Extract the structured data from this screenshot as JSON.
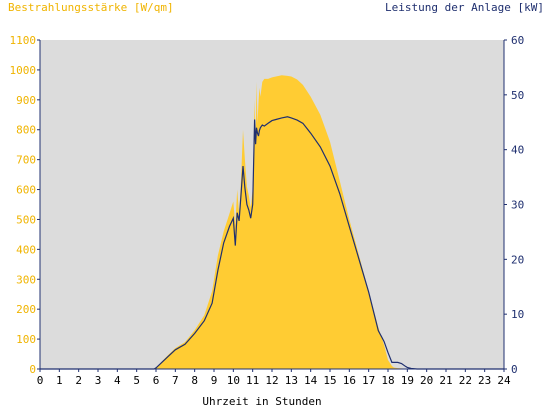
{
  "chart_data": {
    "type": "area",
    "y_left_label": "Bestrahlungsstärke [W/qm]",
    "y_right_label": "Leistung der Anlage [kW]",
    "xlabel": "Uhrzeit in Stunden",
    "xlim": [
      0,
      24
    ],
    "ylim_left": [
      0,
      1100
    ],
    "ylim_right": [
      0,
      60
    ],
    "x_ticks": [
      "0",
      "1",
      "2",
      "3",
      "4",
      "5",
      "6",
      "7",
      "8",
      "9",
      "10",
      "11",
      "12",
      "13",
      "14",
      "15",
      "16",
      "17",
      "18",
      "19",
      "20",
      "21",
      "22",
      "23",
      "24"
    ],
    "y_left_ticks": [
      "0",
      "100",
      "200",
      "300",
      "400",
      "500",
      "600",
      "700",
      "800",
      "900",
      "1000",
      "1100"
    ],
    "y_right_ticks": [
      "0",
      "10",
      "20",
      "30",
      "40",
      "50",
      "60"
    ],
    "grid": false,
    "colors": {
      "irradiance": "#FFCC33",
      "power": "#1F2F6F",
      "plot_background": "#DCDCDC",
      "left_axis_text": "#F0B400",
      "right_axis_text": "#1F2F6F"
    },
    "series": [
      {
        "axis": "left",
        "style": "area",
        "x": [
          0,
          5.9,
          6.0,
          6.3,
          6.6,
          7.0,
          7.5,
          8.0,
          8.5,
          8.9,
          9.2,
          9.5,
          9.8,
          10.0,
          10.1,
          10.2,
          10.3,
          10.4,
          10.5,
          10.6,
          10.7,
          10.8,
          10.9,
          11.0,
          11.1,
          11.15,
          11.2,
          11.25,
          11.3,
          11.35,
          11.4,
          11.5,
          11.6,
          11.8,
          12.0,
          12.2,
          12.5,
          12.8,
          13.0,
          13.3,
          13.6,
          14.0,
          14.5,
          15.0,
          15.5,
          16.0,
          16.5,
          17.0,
          17.5,
          17.8,
          18.0,
          18.2,
          18.3,
          18.5,
          18.7,
          18.9,
          19.0,
          19.2,
          19.5,
          24
        ],
        "y": [
          0,
          0,
          3,
          25,
          45,
          70,
          90,
          130,
          180,
          260,
          380,
          460,
          520,
          560,
          480,
          600,
          520,
          640,
          800,
          700,
          610,
          580,
          540,
          600,
          900,
          760,
          960,
          820,
          890,
          940,
          910,
          960,
          970,
          970,
          975,
          978,
          982,
          980,
          978,
          968,
          950,
          910,
          850,
          760,
          630,
          500,
          380,
          260,
          140,
          80,
          30,
          10,
          5,
          3,
          2,
          1,
          0,
          0,
          0,
          0
        ]
      },
      {
        "axis": "right",
        "style": "line",
        "x": [
          0,
          5.9,
          6.0,
          6.3,
          6.6,
          7.0,
          7.5,
          8.0,
          8.5,
          8.9,
          9.2,
          9.5,
          9.8,
          10.0,
          10.1,
          10.2,
          10.3,
          10.4,
          10.5,
          10.6,
          10.7,
          10.8,
          10.9,
          11.0,
          11.1,
          11.15,
          11.2,
          11.25,
          11.3,
          11.35,
          11.4,
          11.5,
          11.6,
          11.8,
          12.0,
          12.2,
          12.5,
          12.8,
          13.0,
          13.3,
          13.6,
          14.0,
          14.5,
          15.0,
          15.5,
          16.0,
          16.5,
          17.0,
          17.5,
          17.8,
          18.0,
          18.2,
          18.3,
          18.5,
          18.7,
          18.9,
          19.0,
          19.2,
          19.5,
          24
        ],
        "y": [
          0,
          0,
          0.2,
          1.2,
          2.2,
          3.5,
          4.5,
          6.5,
          8.8,
          12,
          18,
          23,
          26,
          27.5,
          22.5,
          28.5,
          27,
          32,
          37,
          33,
          30,
          29,
          27.5,
          30,
          45.5,
          41,
          44,
          43,
          42.5,
          43.5,
          44,
          44.5,
          44.3,
          44.8,
          45.3,
          45.5,
          45.8,
          46,
          45.8,
          45.4,
          44.8,
          43,
          40.5,
          37,
          32,
          26,
          20,
          14,
          7,
          5,
          3,
          1.2,
          1.2,
          1.2,
          1.0,
          0.5,
          0.3,
          0.1,
          0,
          0
        ]
      }
    ]
  }
}
